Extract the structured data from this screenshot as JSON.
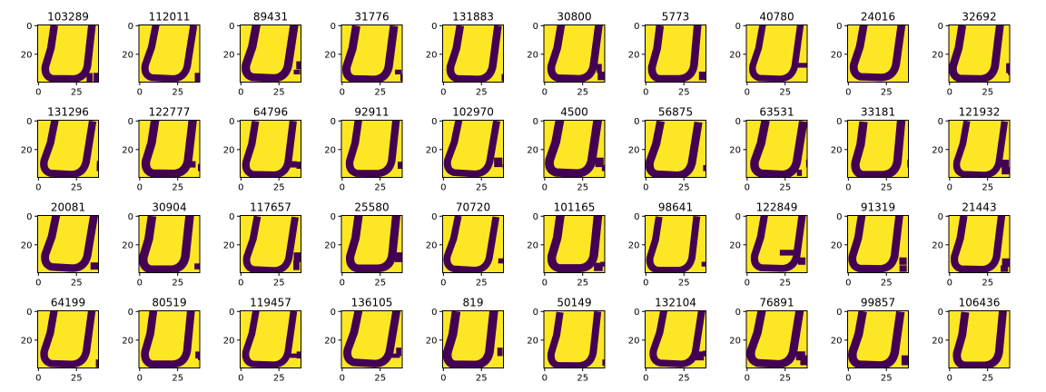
{
  "chart_data": {
    "type": "heatmap",
    "layout": {
      "rows": 4,
      "cols": 10
    },
    "image_shape": [
      40,
      40
    ],
    "colormap": "viridis",
    "colors": {
      "background": "#fde725",
      "glyph": "#440154"
    },
    "glyph_label": "U",
    "x_ticks": [
      {
        "value": 0,
        "label": "0"
      },
      {
        "value": 25,
        "label": "25"
      }
    ],
    "y_ticks": [
      {
        "value": 0,
        "label": "0"
      },
      {
        "value": 20,
        "label": "20"
      }
    ],
    "panels": [
      {
        "title": "103289",
        "variant": 0
      },
      {
        "title": "112011",
        "variant": 1
      },
      {
        "title": "89431",
        "variant": 2
      },
      {
        "title": "31776",
        "variant": 3
      },
      {
        "title": "131883",
        "variant": 4
      },
      {
        "title": "30800",
        "variant": 5
      },
      {
        "title": "5773",
        "variant": 6
      },
      {
        "title": "40780",
        "variant": 7
      },
      {
        "title": "24016",
        "variant": 8
      },
      {
        "title": "32692",
        "variant": 9
      },
      {
        "title": "131296",
        "variant": 10
      },
      {
        "title": "122777",
        "variant": 11
      },
      {
        "title": "64796",
        "variant": 12
      },
      {
        "title": "92911",
        "variant": 13
      },
      {
        "title": "102970",
        "variant": 14
      },
      {
        "title": "4500",
        "variant": 15
      },
      {
        "title": "56875",
        "variant": 16
      },
      {
        "title": "63531",
        "variant": 17
      },
      {
        "title": "33181",
        "variant": 18
      },
      {
        "title": "121932",
        "variant": 19
      },
      {
        "title": "20081",
        "variant": 20
      },
      {
        "title": "30904",
        "variant": 21
      },
      {
        "title": "117657",
        "variant": 22
      },
      {
        "title": "25580",
        "variant": 23
      },
      {
        "title": "70720",
        "variant": 24
      },
      {
        "title": "101165",
        "variant": 25
      },
      {
        "title": "98641",
        "variant": 26
      },
      {
        "title": "122849",
        "variant": 27
      },
      {
        "title": "91319",
        "variant": 28
      },
      {
        "title": "21443",
        "variant": 29
      },
      {
        "title": "64199",
        "variant": 30
      },
      {
        "title": "80519",
        "variant": 31
      },
      {
        "title": "119457",
        "variant": 32
      },
      {
        "title": "136105",
        "variant": 33
      },
      {
        "title": "819",
        "variant": 34
      },
      {
        "title": "50149",
        "variant": 35
      },
      {
        "title": "132104",
        "variant": 36
      },
      {
        "title": "76891",
        "variant": 37
      },
      {
        "title": "99857",
        "variant": 38
      },
      {
        "title": "106436",
        "variant": 39
      }
    ]
  }
}
